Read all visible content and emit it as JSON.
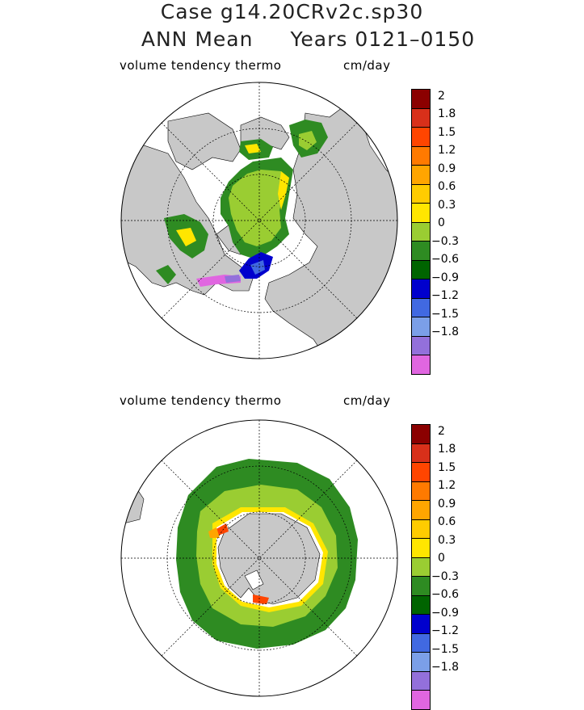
{
  "title": {
    "line1": "Case g14.20CRv2c.sp30",
    "line2_left": "ANN Mean",
    "line2_right": "Years 0121–0150"
  },
  "panels": [
    {
      "id": "north",
      "variable_label": "volume tendency thermo",
      "units_label": "cm/day"
    },
    {
      "id": "south",
      "variable_label": "volume tendency thermo",
      "units_label": "cm/day"
    }
  ],
  "colorbar": {
    "labels": [
      "2",
      "1.8",
      "1.5",
      "1.2",
      "0.9",
      "0.6",
      "0.3",
      "0",
      "−0.3",
      "−0.6",
      "−0.9",
      "−1.2",
      "−1.5",
      "−1.8"
    ],
    "colors": [
      "#8b0000",
      "#d8301a",
      "#ff4500",
      "#ff7a00",
      "#ffa500",
      "#ffcc00",
      "#ffe600",
      "#9acd32",
      "#2e8b22",
      "#006400",
      "#0000cd",
      "#4169e1",
      "#7b9fe8",
      "#9370db",
      "#e066e0"
    ]
  },
  "map_colors": {
    "land": "#c8c8c8",
    "ocean": "#ffffff",
    "ice_pos_light": "#9acd32",
    "ice_zero": "#2e8b22",
    "ice_neg": "#006400",
    "edge_yellow": "#ffe600",
    "edge_orange": "#ffa500",
    "edge_red": "#ff4500",
    "blue": "#0000cd",
    "violet": "#e066e0"
  }
}
